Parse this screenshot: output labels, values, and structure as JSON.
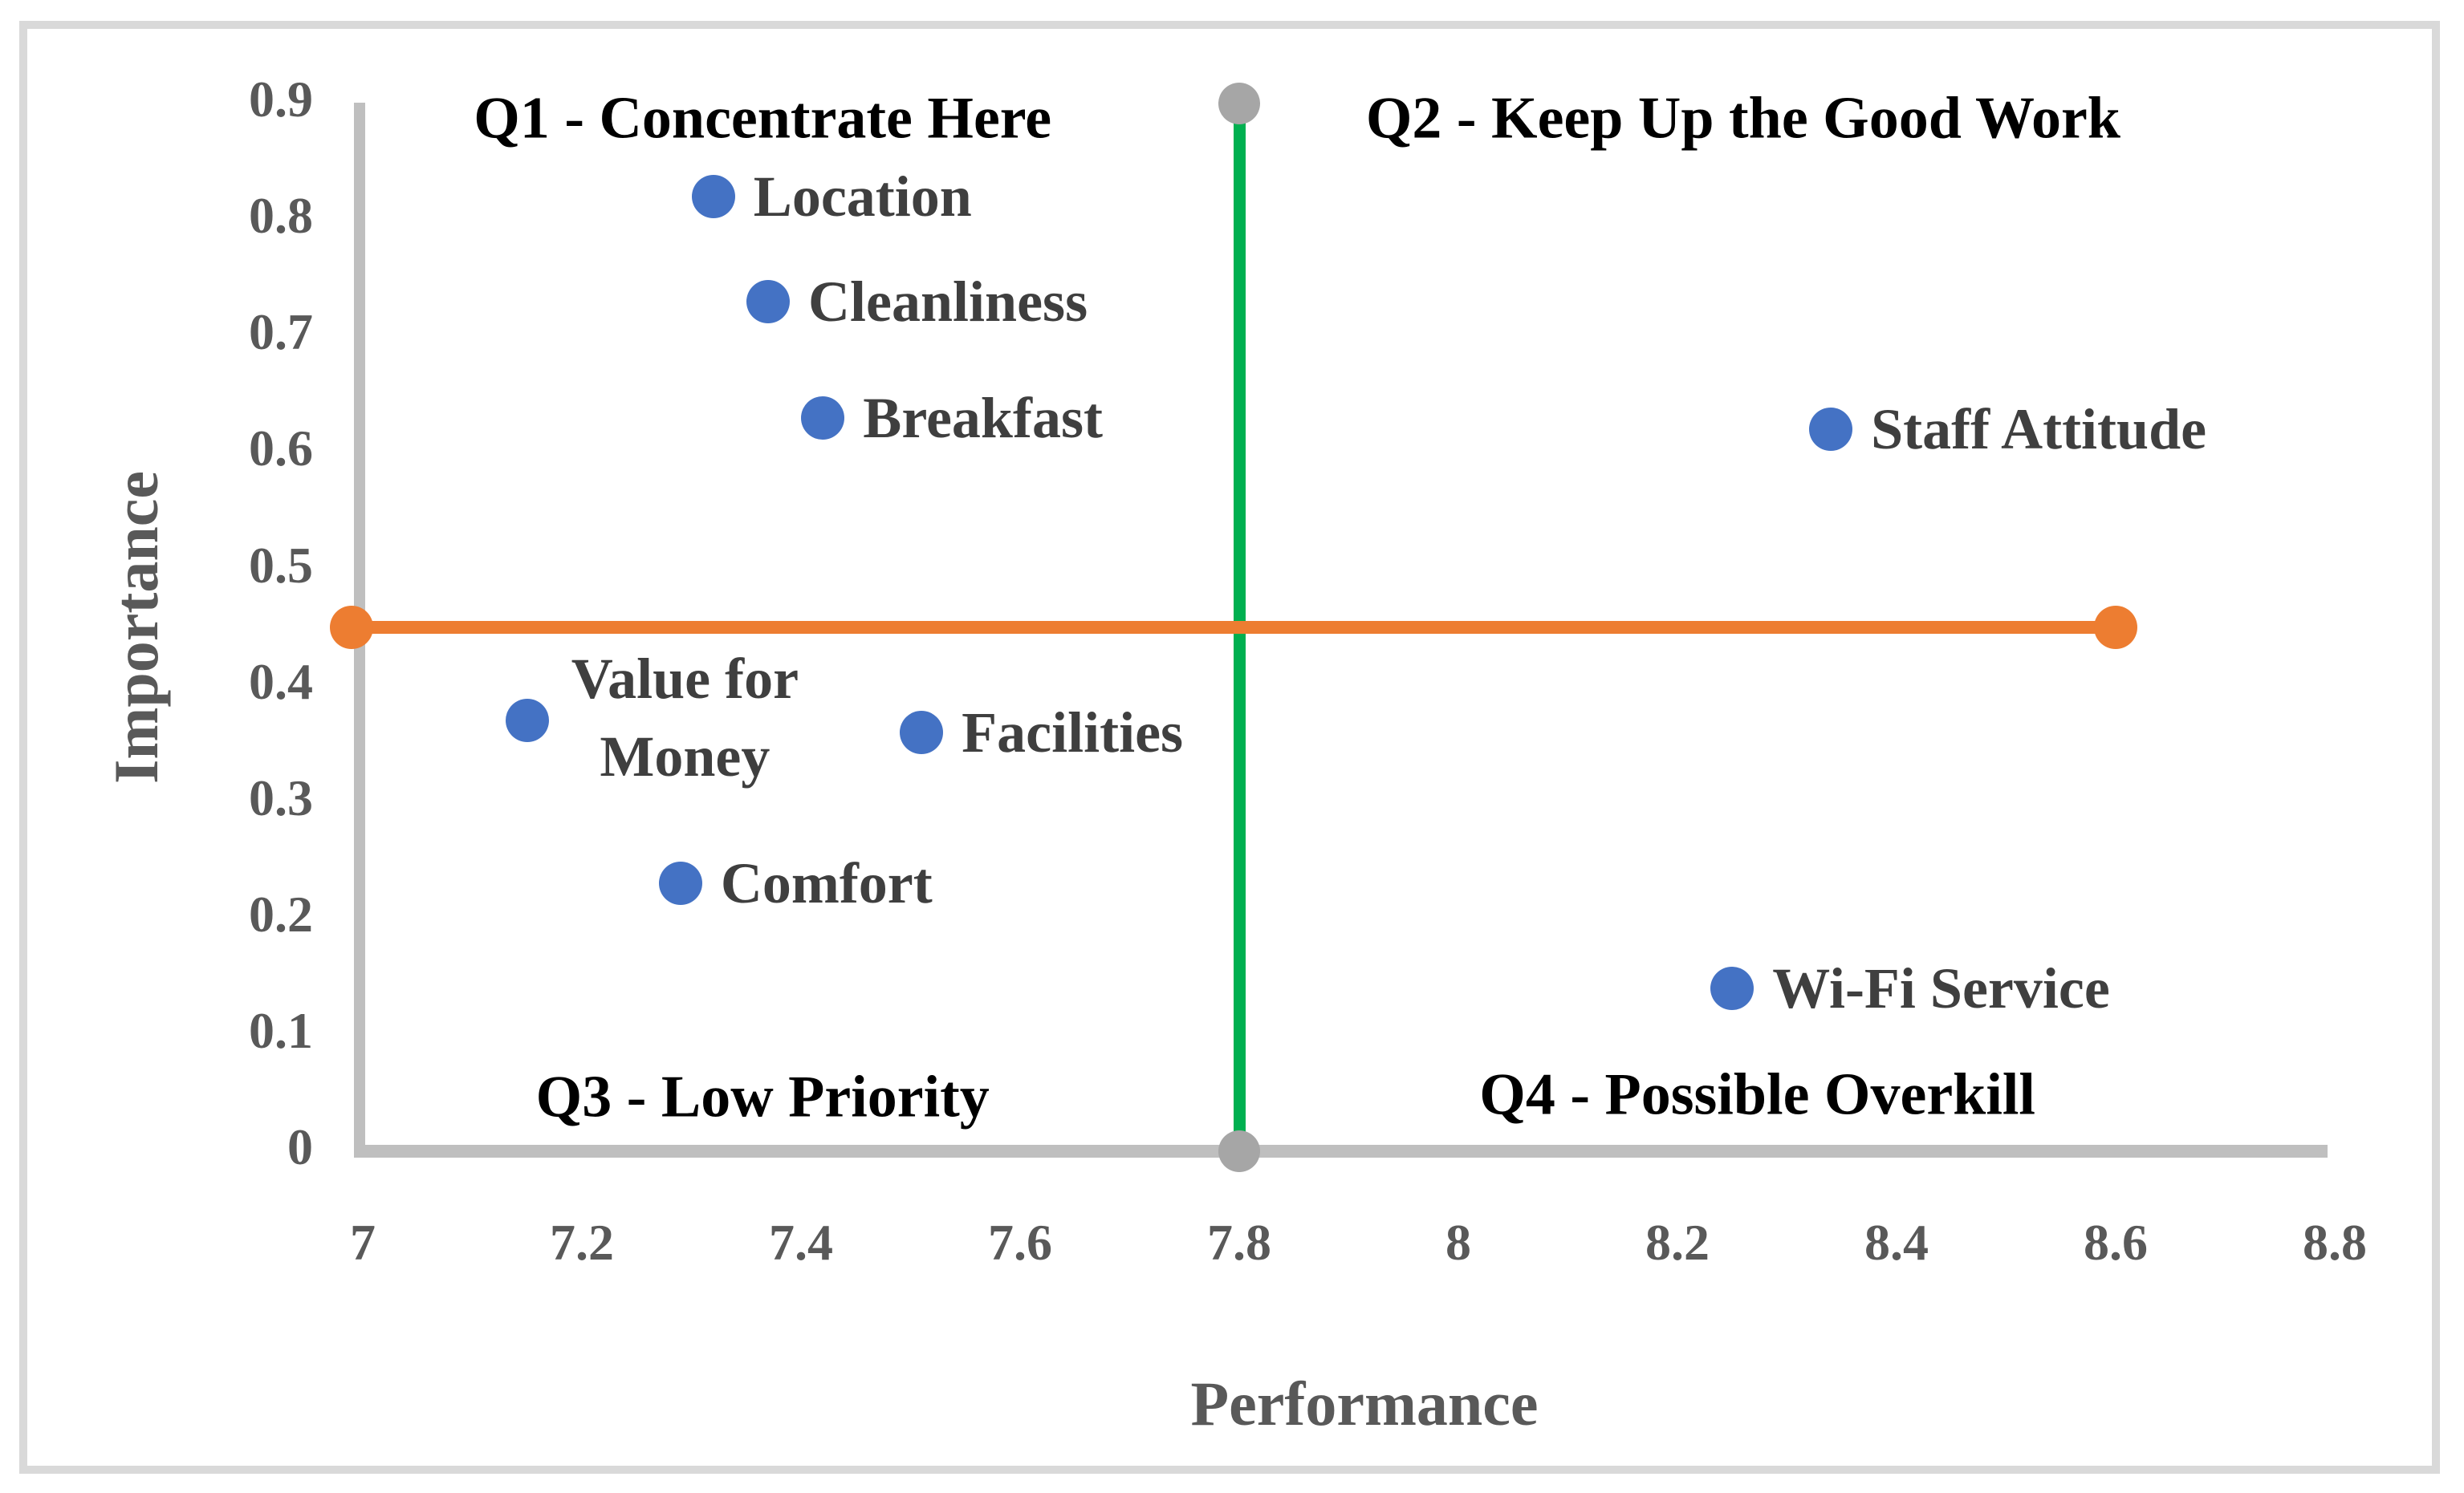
{
  "chart_data": {
    "type": "scatter",
    "title": "",
    "xlabel": "Performance",
    "ylabel": "Importance",
    "xlim": [
      7,
      8.8
    ],
    "ylim": [
      0,
      0.9
    ],
    "grid": false,
    "legend": false,
    "x_ticks": [
      7,
      7.2,
      7.4,
      7.6,
      7.8,
      8,
      8.2,
      8.4,
      8.6,
      8.8
    ],
    "x_tick_labels": [
      "7",
      "7.2",
      "7.4",
      "7.6",
      "7.8",
      "8",
      "8.2",
      "8.4",
      "8.6",
      "8.8"
    ],
    "y_ticks": [
      0,
      0.1,
      0.2,
      0.3,
      0.4,
      0.5,
      0.6,
      0.7,
      0.8,
      0.9
    ],
    "y_tick_labels": [
      "0",
      "0.1",
      "0.2",
      "0.3",
      "0.4",
      "0.5",
      "0.6",
      "0.7",
      "0.8",
      "0.9"
    ],
    "point_color": "#4472C4",
    "points": [
      {
        "label": "Location",
        "x": 7.32,
        "y": 0.82
      },
      {
        "label": "Cleanliness",
        "x": 7.37,
        "y": 0.73
      },
      {
        "label": "Breakfast",
        "x": 7.42,
        "y": 0.63
      },
      {
        "label": "Staff Attitude",
        "x": 8.34,
        "y": 0.62
      },
      {
        "label": "Value for Money",
        "label_lines": [
          "Value for",
          "Money"
        ],
        "x": 7.15,
        "y": 0.37
      },
      {
        "label": "Facilities",
        "x": 7.51,
        "y": 0.36
      },
      {
        "label": "Comfort",
        "x": 7.29,
        "y": 0.23
      },
      {
        "label": "Wi-Fi Service",
        "x": 8.25,
        "y": 0.14
      }
    ],
    "crosshair": {
      "vertical": {
        "x": 7.8,
        "y_from": 0,
        "y_to": 0.9,
        "color": "#00B050",
        "endpoint_color": "#A6A6A6"
      },
      "horizontal": {
        "y": 0.45,
        "x_from": 7.0,
        "x_to": 8.6,
        "color": "#ED7D31",
        "endpoint_color": "#ED7D31"
      }
    },
    "quadrant_labels": [
      {
        "text": "Q1 - Concentrate Here",
        "x": 7.365,
        "y": 0.887
      },
      {
        "text": "Q2 - Keep Up the Good Work",
        "x": 8.26,
        "y": 0.887
      },
      {
        "text": "Q3 - Low Priority",
        "x": 7.365,
        "y": 0.046
      },
      {
        "text": "Q4 - Possible Overkill",
        "x": 8.273,
        "y": 0.048
      }
    ],
    "colors": {
      "axis_line": "#BFBFBF",
      "tick_text": "#595959",
      "data_label_text": "#3F3F3F",
      "quadrant_text": "#000000",
      "border": "#D9D9D9"
    }
  }
}
